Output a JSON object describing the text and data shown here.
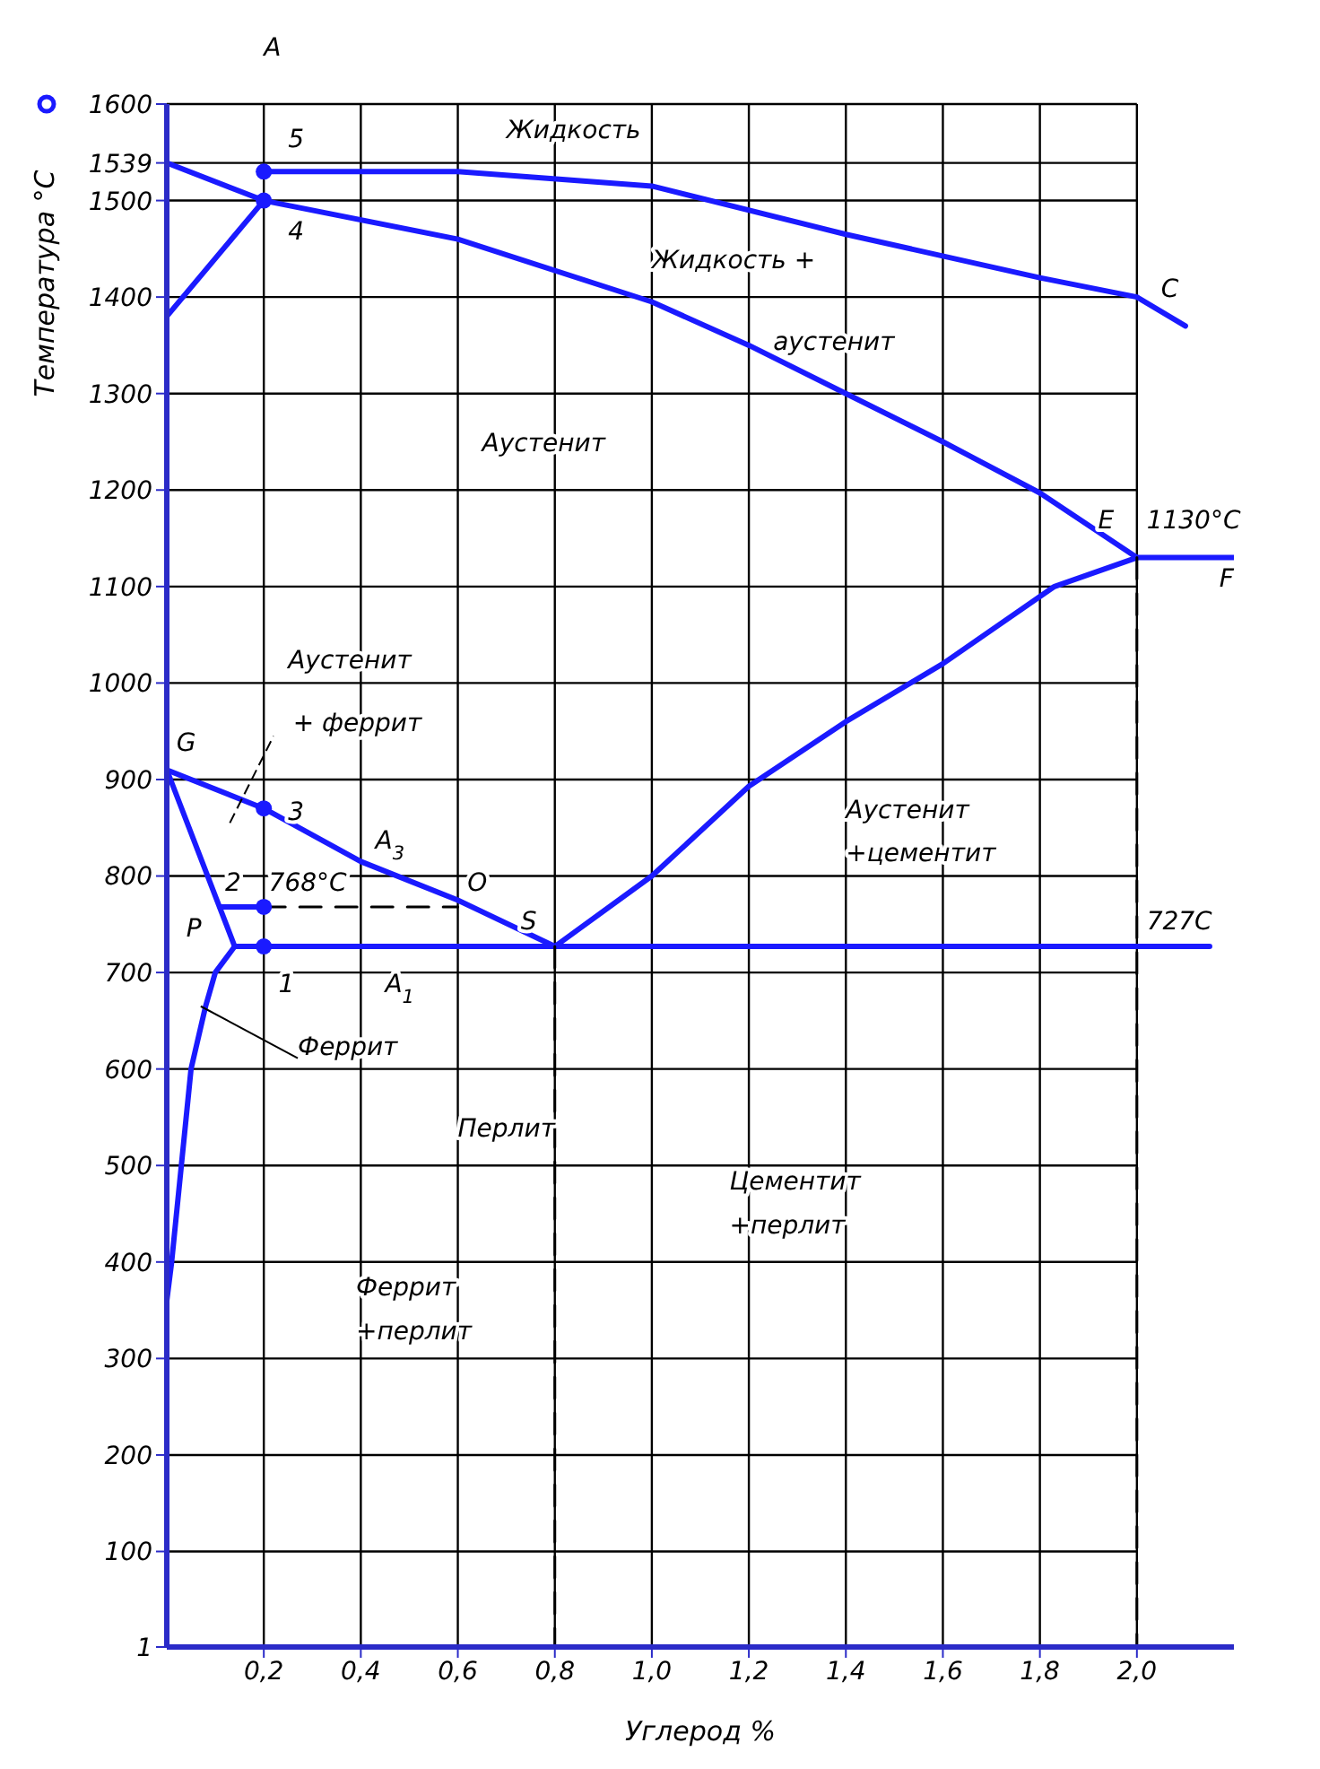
{
  "chart_data": {
    "type": "line",
    "xlabel": "Углерод %",
    "ylabel": "Температура °С",
    "xlim": [
      0,
      2.2
    ],
    "ylim": [
      1,
      1600
    ],
    "xticks": [
      {
        "value": 0.2,
        "label": "0,2"
      },
      {
        "value": 0.4,
        "label": "0,4"
      },
      {
        "value": 0.6,
        "label": "0,6"
      },
      {
        "value": 0.8,
        "label": "0,8"
      },
      {
        "value": 1.0,
        "label": "1,0"
      },
      {
        "value": 1.2,
        "label": "1,2"
      },
      {
        "value": 1.4,
        "label": "1,4"
      },
      {
        "value": 1.6,
        "label": "1,6"
      },
      {
        "value": 1.8,
        "label": "1,8"
      },
      {
        "value": 2.0,
        "label": "2,0"
      }
    ],
    "yticks": [
      1,
      100,
      200,
      300,
      400,
      500,
      600,
      700,
      800,
      900,
      1000,
      1100,
      1200,
      1300,
      1400,
      1500,
      1539,
      1600
    ],
    "grid": true,
    "series": [
      {
        "color": "#1a1aff",
        "x": [
          0,
          0.2,
          0.6,
          1.0,
          1.2,
          1.4,
          1.6,
          1.8,
          2.0
        ],
        "values": [
          1539,
          1500,
          1460,
          1395,
          1350,
          1300,
          1250,
          1197,
          1130
        ]
      },
      {
        "color": "#1a1aff",
        "x": [
          0.2,
          0.6,
          1.0,
          1.4,
          1.8,
          2.0,
          2.1
        ],
        "values": [
          1530,
          1530,
          1515,
          1465,
          1420,
          1400,
          1370
        ]
      },
      {
        "color": "#1a1aff",
        "x": [
          0,
          0.2
        ],
        "values": [
          1380,
          1500
        ]
      },
      {
        "color": "#1a1aff",
        "x": [
          2.2,
          2.0,
          1.83,
          1.6,
          1.4,
          1.2,
          1.0,
          0.8
        ],
        "values": [
          1130,
          1130,
          1100,
          1020,
          960,
          893,
          800,
          727
        ]
      },
      {
        "color": "#1a1aff",
        "x": [
          0,
          0.2,
          0.4,
          0.6,
          0.8
        ],
        "values": [
          910,
          870,
          815,
          775,
          727
        ]
      },
      {
        "color": "#1a1aff",
        "x": [
          0,
          0.14
        ],
        "values": [
          910,
          727
        ]
      },
      {
        "color": "#1a1aff",
        "x": [
          0.11,
          0.2
        ],
        "values": [
          768,
          768
        ]
      },
      {
        "color": "#000000",
        "line_style": "dashed",
        "x": [
          0.2,
          0.6
        ],
        "values": [
          768,
          768
        ]
      },
      {
        "color": "#1a1aff",
        "x": [
          0.14,
          0.1,
          0.08,
          0.05,
          0.03,
          0.01,
          0
        ],
        "values": [
          727,
          700,
          665,
          600,
          500,
          400,
          360
        ]
      },
      {
        "color": "#1a1aff",
        "x": [
          0.14,
          2.15
        ],
        "values": [
          727,
          727
        ]
      },
      {
        "color": "#000000",
        "line_style": "dashed",
        "x": [
          0.8,
          0.8
        ],
        "values": [
          727,
          1
        ]
      },
      {
        "color": "#000000",
        "line_style": "dashed",
        "x": [
          2.0,
          2.0
        ],
        "values": [
          1130,
          1
        ]
      },
      {
        "type": "scatter",
        "color": "#1a1aff",
        "marker": "circle",
        "x": [
          0.2,
          0.2,
          0.2,
          0.2,
          0.2
        ],
        "values": [
          1530,
          1500,
          870,
          768,
          727
        ]
      }
    ],
    "annotations": [
      "А",
      "5",
      "4",
      "Жидкость",
      "Жидкость +",
      "аустенит",
      "С",
      "Аустенит",
      "Е",
      "1130°С",
      "F",
      "G",
      "Аустенит",
      "+ феррит",
      "3",
      "А$_{3}$",
      "2",
      "768°С",
      "О",
      "S",
      "Р",
      "1",
      "А$_{1}$",
      "727С",
      {
        "text": "Феррит",
        "x": 0.07,
        "y": 665
      },
      "Перлит",
      "Аустенит",
      "+цементит",
      "Цементит",
      "+перлит",
      "Феррит",
      "+перлит"
    ]
  }
}
